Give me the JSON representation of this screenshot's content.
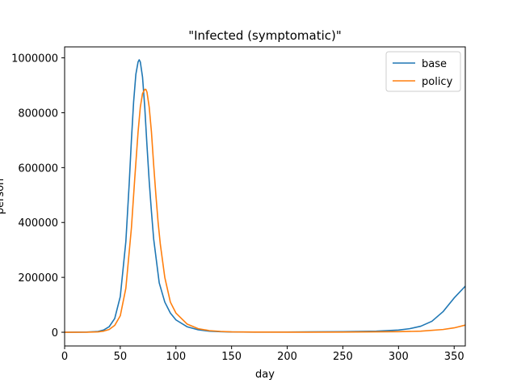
{
  "chart_data": {
    "type": "line",
    "title": "\"Infected (symptomatic)\"",
    "xlabel": "day",
    "ylabel": "person",
    "xlim": [
      0,
      360
    ],
    "ylim": [
      -50000,
      1040000
    ],
    "xticks": [
      0,
      50,
      100,
      150,
      200,
      250,
      300,
      350
    ],
    "xtick_labels": [
      "0",
      "50",
      "100",
      "150",
      "200",
      "250",
      "300",
      "350"
    ],
    "yticks": [
      0,
      200000,
      400000,
      600000,
      800000,
      1000000
    ],
    "ytick_labels": [
      "0",
      "200000",
      "400000",
      "600000",
      "800000",
      "1000000"
    ],
    "grid": false,
    "legend_position": "top-right",
    "series": [
      {
        "name": "base",
        "color": "#1f77b4",
        "x": [
          0,
          20,
          30,
          35,
          40,
          45,
          50,
          55,
          58,
          60,
          62,
          64,
          66,
          67,
          68,
          70,
          72,
          74,
          76,
          78,
          80,
          85,
          90,
          95,
          100,
          110,
          120,
          130,
          140,
          150,
          170,
          200,
          250,
          280,
          300,
          310,
          320,
          330,
          340,
          350,
          360
        ],
        "y": [
          0,
          500,
          3000,
          8000,
          20000,
          50000,
          130000,
          330000,
          540000,
          700000,
          840000,
          940000,
          985000,
          993000,
          985000,
          930000,
          820000,
          680000,
          550000,
          440000,
          340000,
          180000,
          110000,
          70000,
          45000,
          20000,
          9000,
          4000,
          2000,
          1000,
          500,
          800,
          2000,
          4000,
          8000,
          13000,
          22000,
          40000,
          75000,
          125000,
          168000
        ]
      },
      {
        "name": "policy",
        "color": "#ff7f0e",
        "x": [
          0,
          20,
          30,
          35,
          40,
          45,
          50,
          55,
          60,
          63,
          66,
          68,
          70,
          72,
          73,
          74,
          76,
          78,
          80,
          82,
          84,
          86,
          90,
          95,
          100,
          110,
          120,
          130,
          140,
          150,
          170,
          200,
          250,
          300,
          320,
          340,
          350,
          360
        ],
        "y": [
          0,
          300,
          1500,
          4000,
          10000,
          25000,
          60000,
          160000,
          380000,
          560000,
          730000,
          820000,
          870000,
          885000,
          885000,
          875000,
          820000,
          730000,
          610000,
          500000,
          400000,
          320000,
          200000,
          110000,
          70000,
          30000,
          13000,
          6000,
          3000,
          1500,
          500,
          300,
          500,
          2000,
          4000,
          10000,
          16000,
          26000
        ]
      }
    ]
  }
}
